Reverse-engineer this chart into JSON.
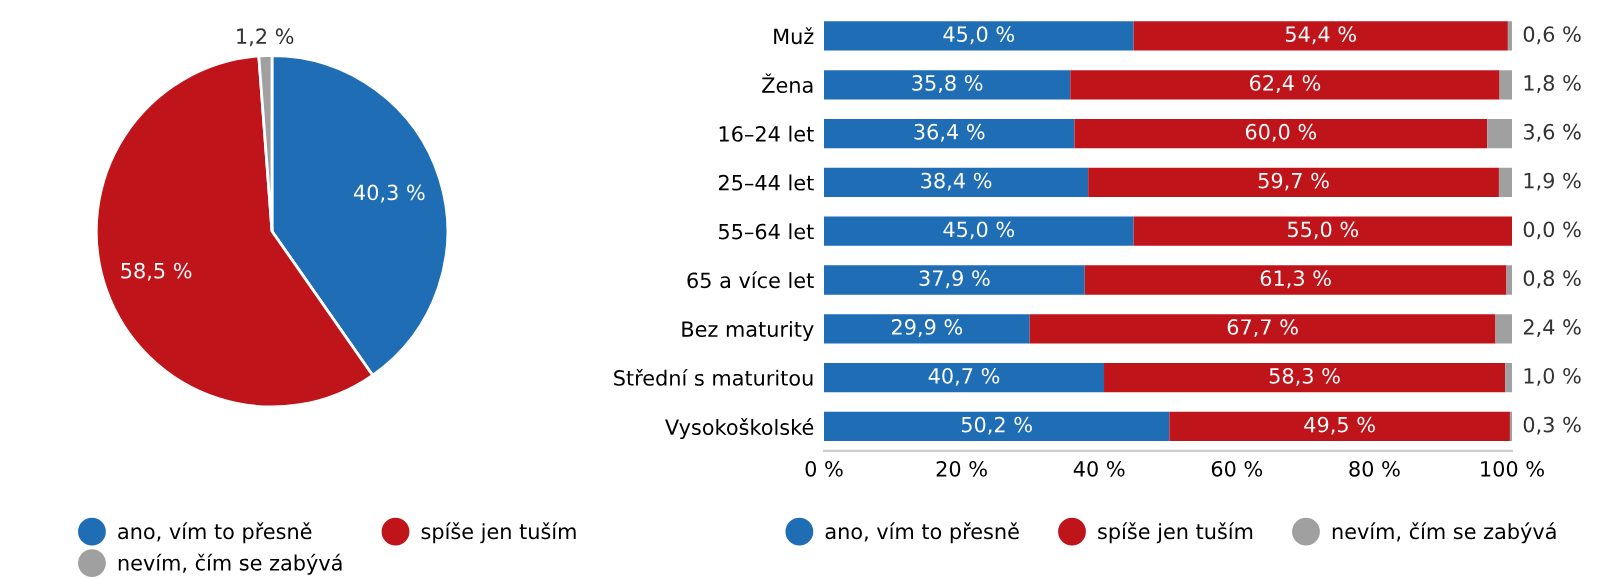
{
  "chart_data": [
    {
      "type": "pie",
      "categories": [
        "ano, vím to přesně",
        "spíše jen tuším",
        "nevím, čím se zabývá"
      ],
      "values": [
        40.3,
        58.5,
        1.2
      ],
      "colors": [
        "#1f6db5",
        "#c0141b",
        "#a0a0a0"
      ],
      "value_labels": [
        "40,3 %",
        "58,5 %",
        "1,2 %"
      ],
      "legend": "bottom"
    },
    {
      "type": "bar",
      "orientation": "horizontal",
      "stacked": true,
      "legend": "bottom",
      "categories": [
        "Muž",
        "Žena",
        "16–24 let",
        "25–44 let",
        "55–64 let",
        "65 a více let",
        "Bez maturity",
        "Střední s maturitou",
        "Vysokoškolské"
      ],
      "series": [
        {
          "name": "ano, vím to přesně",
          "color": "#1f6db5",
          "values": [
            45.0,
            35.8,
            36.4,
            38.4,
            45.0,
            37.9,
            29.9,
            40.7,
            50.2
          ],
          "value_labels": [
            "45,0 %",
            "35,8 %",
            "36,4 %",
            "38,4 %",
            "45,0 %",
            "37,9 %",
            "29,9 %",
            "40,7 %",
            "50,2 %"
          ]
        },
        {
          "name": "spíše jen tuším",
          "color": "#c0141b",
          "values": [
            54.4,
            62.4,
            60.0,
            59.7,
            55.0,
            61.3,
            67.7,
            58.3,
            49.5
          ],
          "value_labels": [
            "54,4 %",
            "62,4 %",
            "60,0 %",
            "59,7 %",
            "55,0 %",
            "61,3 %",
            "67,7 %",
            "58,3 %",
            "49,5 %"
          ]
        },
        {
          "name": "nevím, čím se zabývá",
          "color": "#a0a0a0",
          "values": [
            0.6,
            1.8,
            3.6,
            1.9,
            0.0,
            0.8,
            2.4,
            1.0,
            0.3
          ],
          "value_labels": [
            "0,6 %",
            "1,8 %",
            "3,6 %",
            "1,9 %",
            "0,0 %",
            "0,8 %",
            "2,4 %",
            "1,0 %",
            "0,3 %"
          ]
        }
      ],
      "xlim": [
        0,
        100
      ],
      "xticks": [
        {
          "value": 0,
          "label": "0 %"
        },
        {
          "value": 20,
          "label": "20 %"
        },
        {
          "value": 40,
          "label": "40 %"
        },
        {
          "value": 60,
          "label": "60 %"
        },
        {
          "value": 80,
          "label": "80 %"
        },
        {
          "value": 100,
          "label": "100 %"
        }
      ]
    }
  ]
}
